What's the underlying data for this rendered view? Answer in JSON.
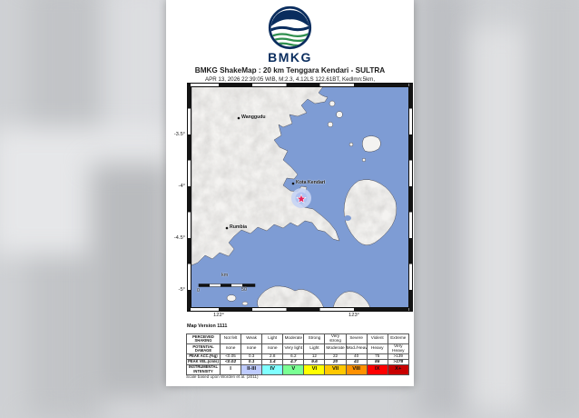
{
  "header": {
    "logo_text": "BMKG",
    "title": "BMKG ShakeMap : 20 km Tenggara Kendari - SULTRA",
    "subtitle": "APR 13, 2026 22:39:05 WIB, M:2.3, 4.12LS 122.61BT, Kedlmn:5km,"
  },
  "map": {
    "version": "Map Version 1111",
    "cities": {
      "wanggudu": "Wanggudu",
      "kota_kendari": "Kota Kendari",
      "rumbia": "Rumbia"
    },
    "scale_bar": {
      "unit": "km",
      "start": "0",
      "end": "50"
    },
    "lat_labels": [
      "-3.5°",
      "-4°",
      "-4.5°",
      "-5°"
    ],
    "lon_labels": [
      "122°",
      "123°"
    ],
    "colors": {
      "sea": "#7e9cd4",
      "land": "#f4f3f1",
      "intensity_zone": "#c7d4f4",
      "intensity_zone_inner": "#aec1f0",
      "epicenter_star": "#e5245e"
    }
  },
  "legend": {
    "rows": [
      {
        "label": "PERCEIVED SHAKING",
        "cells": [
          "Not felt",
          "Weak",
          "Light",
          "Moderate",
          "Strong",
          "Very strong",
          "Severe",
          "Violent",
          "Extreme"
        ]
      },
      {
        "label": "POTENTIAL DAMAGE",
        "cells": [
          "none",
          "none",
          "none",
          "Very light",
          "Light",
          "Moderate",
          "Mod./Heavy",
          "Heavy",
          "Very Heavy"
        ]
      },
      {
        "label": "PEAK ACC.(%g)",
        "cells": [
          "<0.05",
          "0.3",
          "2.8",
          "6.2",
          "12",
          "22",
          "40",
          "75",
          ">139"
        ]
      },
      {
        "label": "PEAK VEL.(cm/s)",
        "cells": [
          "<0.02",
          "0.1",
          "1.4",
          "4.7",
          "9.6",
          "20",
          "41",
          "86",
          ">178"
        ]
      },
      {
        "label": "INSTRUMENTAL INTENSITY",
        "cells": [
          "I",
          "II-III",
          "IV",
          "V",
          "VI",
          "VII",
          "VIII",
          "IX",
          "X+"
        ]
      }
    ],
    "intensity_colors": [
      "#ffffff",
      "#bfccff",
      "#80ffff",
      "#7aff93",
      "#ffff00",
      "#ffc800",
      "#ff9100",
      "#ff0000",
      "#c80000"
    ],
    "footnote": "Scale based upon Worden et al. (2011)"
  }
}
